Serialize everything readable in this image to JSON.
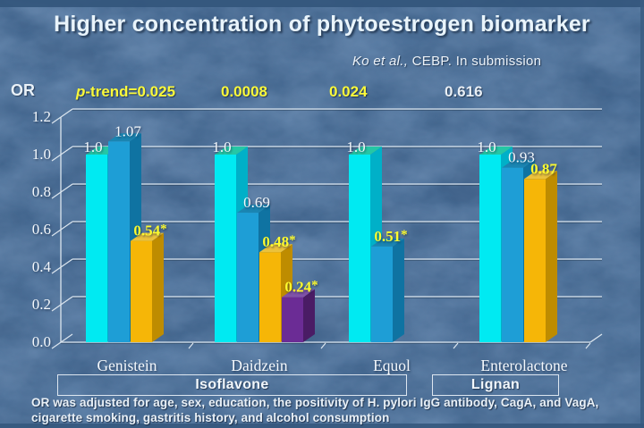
{
  "slide": {
    "title": "Higher concentration of phytoestrogen biomarker",
    "citation": {
      "italic": "Ko et al.,",
      "rest": " CEBP. In submission"
    },
    "y_axis_label": "OR",
    "footnote": [
      "OR was adjusted for age, sex, education, the positivity of H. pylori IgG antibody, CagA, and VagA,",
      "cigarette smoking, gastritis history, and alcohol consumption"
    ]
  },
  "p_trend_row": {
    "prefix_italic": "p",
    "prefix_rest": "-trend=",
    "entries": [
      {
        "value": "0.025",
        "significant": true
      },
      {
        "value": "0.0008",
        "significant": true
      },
      {
        "value": "0.024",
        "significant": true
      },
      {
        "value": "0.616",
        "significant": false
      }
    ]
  },
  "chart_data": {
    "type": "bar",
    "title": "Higher concentration of phytoestrogen biomarker",
    "ylabel": "OR",
    "xlabel": "",
    "ylim": [
      0,
      1.2
    ],
    "yticks": [
      0.0,
      0.2,
      0.4,
      0.6,
      0.8,
      1.0,
      1.2
    ],
    "ytick_labels": [
      "0.0",
      "0.2",
      "0.4",
      "0.6",
      "0.8",
      "1.0",
      "1.2"
    ],
    "grid": "horizontal",
    "legend": "none",
    "style": "3d-bars",
    "categories": [
      "Genistein",
      "Daidzein",
      "Equol",
      "Enterolactone"
    ],
    "groups": [
      {
        "category": "Genistein",
        "p_trend": "0.025",
        "bars": [
          {
            "value": 1.0,
            "label": "1.0",
            "color_key": "cyan",
            "highlight": false
          },
          {
            "value": 1.07,
            "label": "1.07",
            "color_key": "blue",
            "highlight": false
          },
          {
            "value": 0.54,
            "label": "0.54*",
            "color_key": "orange",
            "highlight": true
          }
        ]
      },
      {
        "category": "Daidzein",
        "p_trend": "0.0008",
        "bars": [
          {
            "value": 1.0,
            "label": "1.0",
            "color_key": "cyan",
            "highlight": false
          },
          {
            "value": 0.69,
            "label": "0.69",
            "color_key": "blue",
            "highlight": false
          },
          {
            "value": 0.48,
            "label": "0.48*",
            "color_key": "orange",
            "highlight": true
          },
          {
            "value": 0.24,
            "label": "0.24*",
            "color_key": "purple",
            "highlight": true
          }
        ]
      },
      {
        "category": "Equol",
        "p_trend": "0.024",
        "bars": [
          {
            "value": 1.0,
            "label": "1.0",
            "color_key": "cyan",
            "highlight": false
          },
          {
            "value": 0.51,
            "label": "0.51*",
            "color_key": "blue",
            "highlight": true
          }
        ]
      },
      {
        "category": "Enterolactone",
        "p_trend": "0.616",
        "bars": [
          {
            "value": 1.0,
            "label": "1.0",
            "color_key": "cyan",
            "highlight": false
          },
          {
            "value": 0.93,
            "label": "0.93",
            "color_key": "blue",
            "highlight": false
          },
          {
            "value": 0.87,
            "label": "0.87",
            "color_key": "orange",
            "highlight": true
          }
        ]
      }
    ],
    "category_group_boxes": [
      {
        "label": "Isoflavone",
        "categories": [
          "Genistein",
          "Daidzein",
          "Equol"
        ]
      },
      {
        "label": "Lignan",
        "categories": [
          "Enterolactone"
        ]
      }
    ]
  },
  "colors": {
    "background": "#597CA4",
    "bar_cyan": "#00EAF2",
    "bar_cyan_top": "#25C7A5",
    "bar_cyan_side": "#00B0C8",
    "bar_blue": "#1E9ED6",
    "bar_blue_top": "#1A85B2",
    "bar_blue_side": "#0F73A2",
    "bar_orange": "#F6B607",
    "bar_orange_top": "#EBC23C",
    "bar_orange_side": "#BE8C00",
    "bar_purple": "#6B2C95",
    "bar_purple_top": "#8052A8",
    "bar_purple_side": "#4A1C65",
    "gridline": "#DCE6EF",
    "significant_label": "#FDFB2E",
    "normal_label": "#F4F8FC",
    "p_trend_significant": "#FBF93A",
    "p_trend_not_significant": "#E9EFF5"
  }
}
